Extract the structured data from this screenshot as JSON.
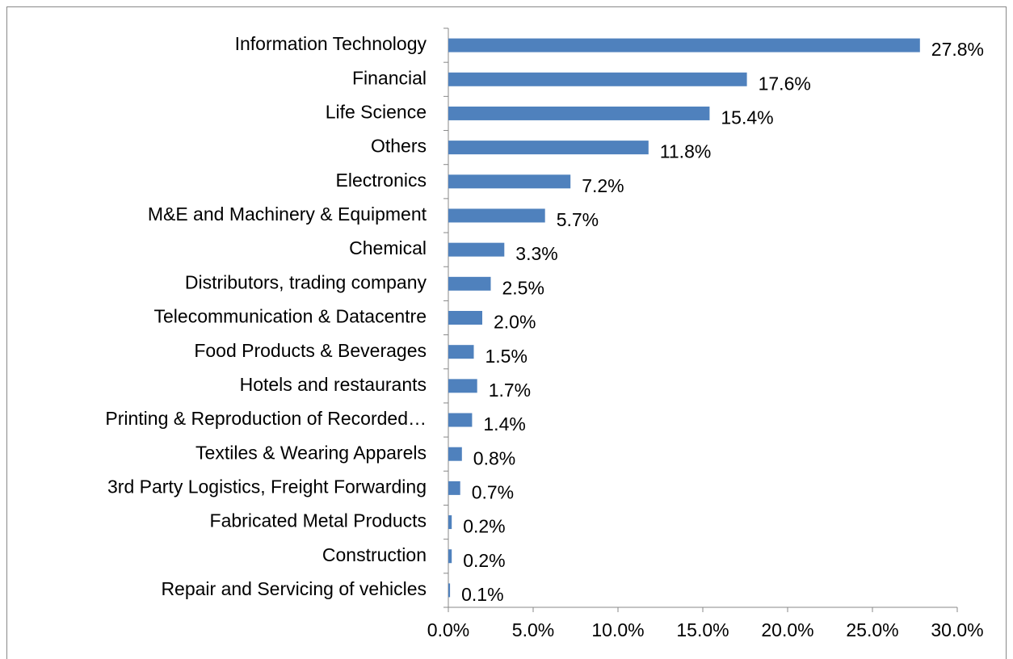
{
  "chart_data": {
    "type": "bar",
    "orientation": "horizontal",
    "categories": [
      "Information Technology",
      "Financial",
      "Life Science",
      "Others",
      "Electronics",
      "M&E and Machinery & Equipment",
      "Chemical",
      "Distributors, trading company",
      "Telecommunication & Datacentre",
      "Food Products & Beverages",
      "Hotels and restaurants",
      "Printing & Reproduction of Recorded…",
      "Textiles & Wearing Apparels",
      "3rd Party Logistics, Freight Forwarding",
      "Fabricated Metal Products",
      "Construction",
      "Repair and Servicing of vehicles"
    ],
    "values": [
      27.8,
      17.6,
      15.4,
      11.8,
      7.2,
      5.7,
      3.3,
      2.5,
      2.0,
      1.5,
      1.7,
      1.4,
      0.8,
      0.7,
      0.2,
      0.2,
      0.1
    ],
    "value_labels": [
      "27.8%",
      "17.6%",
      "15.4%",
      "11.8%",
      "7.2%",
      "5.7%",
      "3.3%",
      "2.5%",
      "2.0%",
      "1.5%",
      "1.7%",
      "1.4%",
      "0.8%",
      "0.7%",
      "0.2%",
      "0.2%",
      "0.1%"
    ],
    "color": "#4f81bd",
    "xlim": [
      0,
      30
    ],
    "xticks": [
      {
        "value": 0,
        "label": "0.0%"
      },
      {
        "value": 5,
        "label": "5.0%"
      },
      {
        "value": 10,
        "label": "10.0%"
      },
      {
        "value": 15,
        "label": "15.0%"
      },
      {
        "value": 20,
        "label": "20.0%"
      },
      {
        "value": 25,
        "label": "25.0%"
      },
      {
        "value": 30,
        "label": "30.0%"
      }
    ],
    "grid": false
  }
}
